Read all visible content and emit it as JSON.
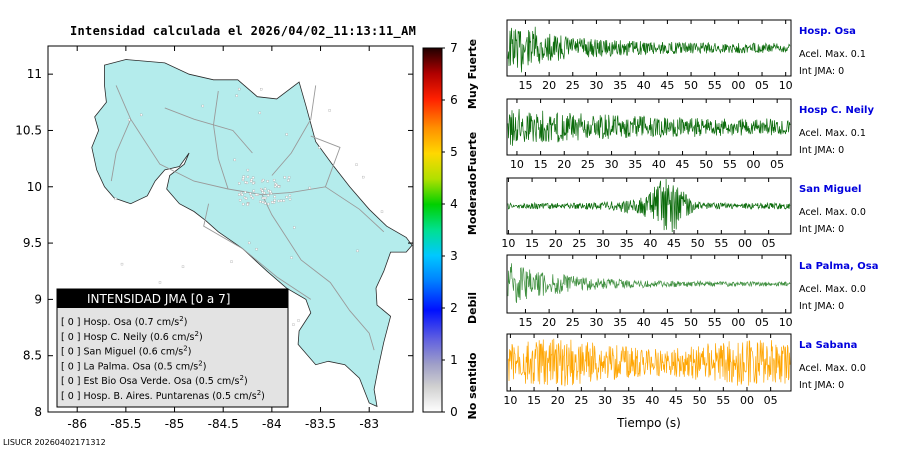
{
  "title": "Intensidad calculada el 2026/04/02_11:13:11_AM",
  "footer": "LISUCR 20260402171312",
  "map": {
    "x_ticks": [
      "-86",
      "-85.5",
      "-85",
      "-84.5",
      "-84",
      "-83.5",
      "-83"
    ],
    "y_ticks": [
      "11",
      "10.5",
      "10",
      "9.5",
      "9",
      "8.5",
      "8"
    ],
    "land_color": "#b4ecec"
  },
  "legend_box": {
    "header": "INTENSIDAD JMA [0 a 7]",
    "entries": [
      {
        "label": "[ 0 ]  Hosp. Osa (0.7 cm/s",
        "sup": "2",
        "tail": ")"
      },
      {
        "label": "[ 0 ]  Hosp C. Neily (0.6 cm/s",
        "sup": "2",
        "tail": ")"
      },
      {
        "label": "[ 0 ]  San Miguel (0.6 cm/s",
        "sup": "2",
        "tail": ")"
      },
      {
        "label": "[ 0 ]  La Palma. Osa (0.5 cm/s",
        "sup": "2",
        "tail": ")"
      },
      {
        "label": "[ 0 ]  Est Bio Osa Verde. Osa (0.5 cm/s",
        "sup": "2",
        "tail": ")"
      },
      {
        "label": "[ 0 ]  Hosp. B. Aires. Puntarenas (0.5 cm/s",
        "sup": "2",
        "tail": ")"
      }
    ]
  },
  "colorbar": {
    "ticks": [
      "0",
      "1",
      "2",
      "3",
      "4",
      "5",
      "6",
      "7"
    ],
    "labels": [
      {
        "text": "No sentido",
        "center": 0.5
      },
      {
        "text": "Debil",
        "center": 2
      },
      {
        "text": "Moderado",
        "center": 4
      },
      {
        "text": "Fuerte",
        "center": 5
      },
      {
        "text": "Muy Fuerte",
        "center": 6.5
      }
    ]
  },
  "traces": [
    {
      "name": "Hosp. Osa",
      "acel": "Acel. Max. 0.1",
      "int": "Int JMA: 0",
      "color": "#0b6b0b",
      "ticks": [
        "15",
        "20",
        "25",
        "30",
        "35",
        "40",
        "45",
        "50",
        "55",
        "00",
        "05",
        "10"
      ],
      "tick_start": 0.065,
      "pattern": "decay",
      "amp": 0.9
    },
    {
      "name": "Hosp C. Neily",
      "acel": "Acel. Max. 0.1",
      "int": "Int JMA: 0",
      "color": "#0b6b0b",
      "ticks": [
        "10",
        "15",
        "20",
        "25",
        "30",
        "35",
        "40",
        "45",
        "50",
        "55",
        "00",
        "05"
      ],
      "tick_start": 0.035,
      "pattern": "decay_slow",
      "amp": 0.75
    },
    {
      "name": "San Miguel",
      "acel": "Acel. Max. 0.0",
      "int": "Int JMA: 0",
      "color": "#0b6b0b",
      "ticks": [
        "10",
        "15",
        "20",
        "25",
        "30",
        "35",
        "40",
        "45",
        "50",
        "55",
        "00",
        "05"
      ],
      "tick_start": 0.005,
      "pattern": "burst",
      "amp": 0.95
    },
    {
      "name": "La Palma, Osa",
      "acel": "Acel. Max. 0.0",
      "int": "Int JMA: 0",
      "color": "#3f8f3f",
      "ticks": [
        "15",
        "20",
        "25",
        "30",
        "35",
        "40",
        "45",
        "50",
        "55",
        "00",
        "05",
        "10"
      ],
      "tick_start": 0.065,
      "pattern": "decay_fast",
      "amp": 0.85
    },
    {
      "name": "La Sabana",
      "acel": "Acel. Max. 0.0",
      "int": "Int JMA: 0",
      "color": "#ffa500",
      "ticks": [
        "10",
        "15",
        "20",
        "25",
        "30",
        "35",
        "40",
        "45",
        "50",
        "55",
        "00",
        "05"
      ],
      "tick_start": 0.012,
      "pattern": "noise",
      "amp": 0.95
    }
  ],
  "xaxis_label": "Tiempo (s)"
}
